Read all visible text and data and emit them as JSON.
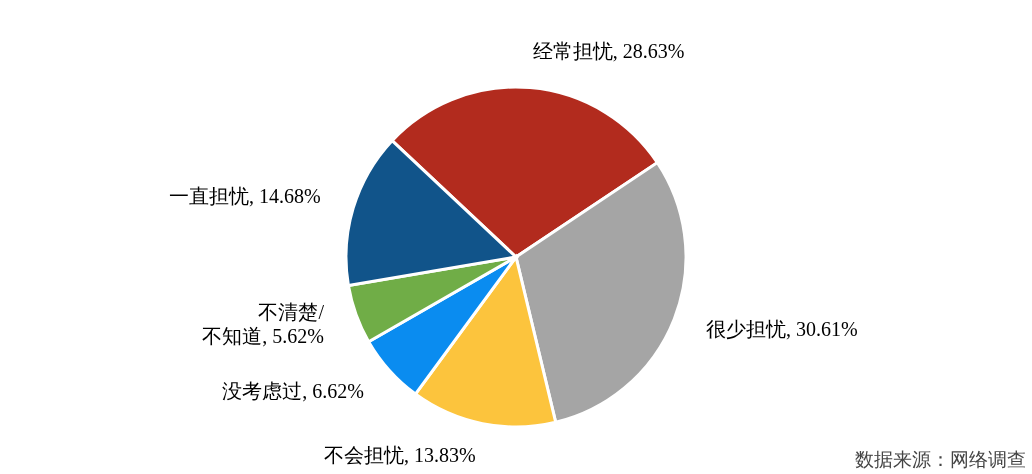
{
  "chart_data": {
    "type": "pie",
    "categories": [
      "经常担忧",
      "很少担忧",
      "不会担忧",
      "没考虑过",
      "不清楚/不知道",
      "一直担忧"
    ],
    "values": [
      28.63,
      30.61,
      13.83,
      6.62,
      5.62,
      14.68
    ],
    "colors": [
      "#b22b1e",
      "#a5a5a5",
      "#fcc43d",
      "#0a8cf0",
      "#70ad47",
      "#11548a"
    ],
    "value_labels": [
      "28.63%",
      "30.61%",
      "13.83%",
      "6.62%",
      "5.62%",
      "14.68%"
    ],
    "annotations": [
      "数据来源：网络调查"
    ]
  }
}
